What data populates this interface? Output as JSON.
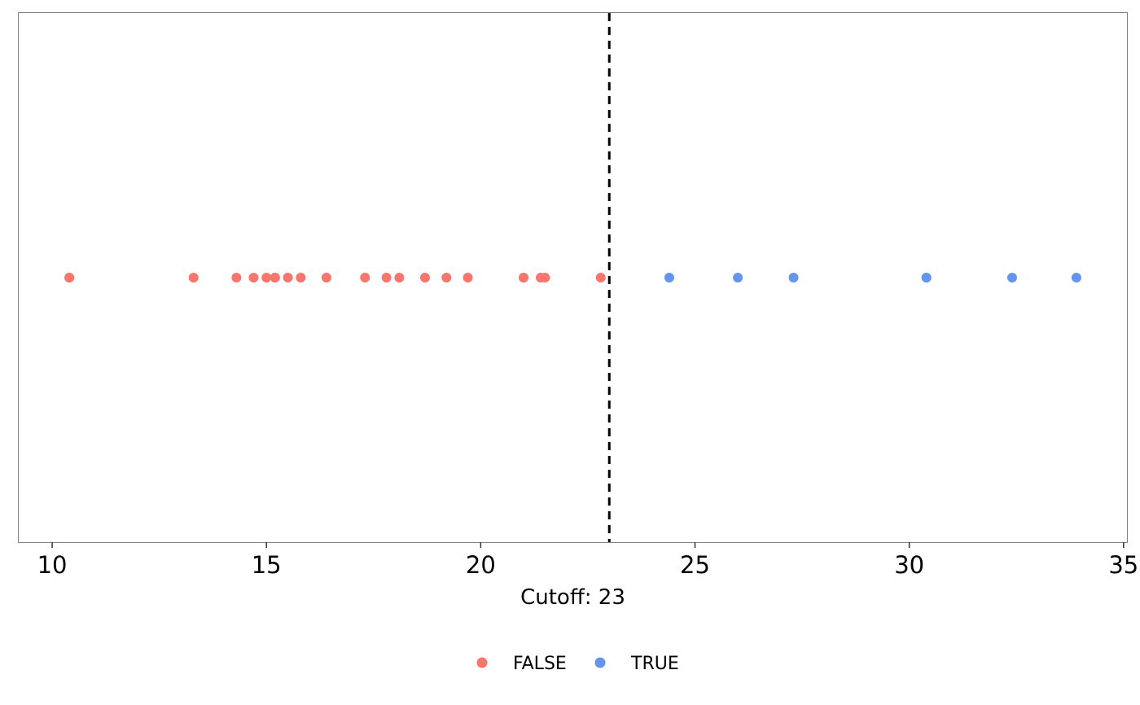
{
  "chart_data": {
    "type": "scatter",
    "xlabel": "Cutoff: 23",
    "xlim": [
      9.22,
      35.08
    ],
    "x_ticks": [
      "10",
      "15",
      "20",
      "25",
      "30",
      "35"
    ],
    "x_tick_values": [
      10,
      15,
      20,
      25,
      30,
      35
    ],
    "cutoff": 23,
    "grid": false,
    "legend_position": "bottom",
    "series": [
      {
        "name": "FALSE",
        "color": "#F8766D",
        "values": [
          10.4,
          10.4,
          13.3,
          14.3,
          14.7,
          15.0,
          15.2,
          15.2,
          15.5,
          15.8,
          16.4,
          17.3,
          17.8,
          18.1,
          18.7,
          19.2,
          19.7,
          21.0,
          21.0,
          21.4,
          21.5,
          22.8
        ]
      },
      {
        "name": "TRUE",
        "color": "#6495ED",
        "values": [
          24.4,
          26.0,
          27.3,
          30.4,
          30.4,
          32.4,
          33.9
        ]
      }
    ]
  }
}
